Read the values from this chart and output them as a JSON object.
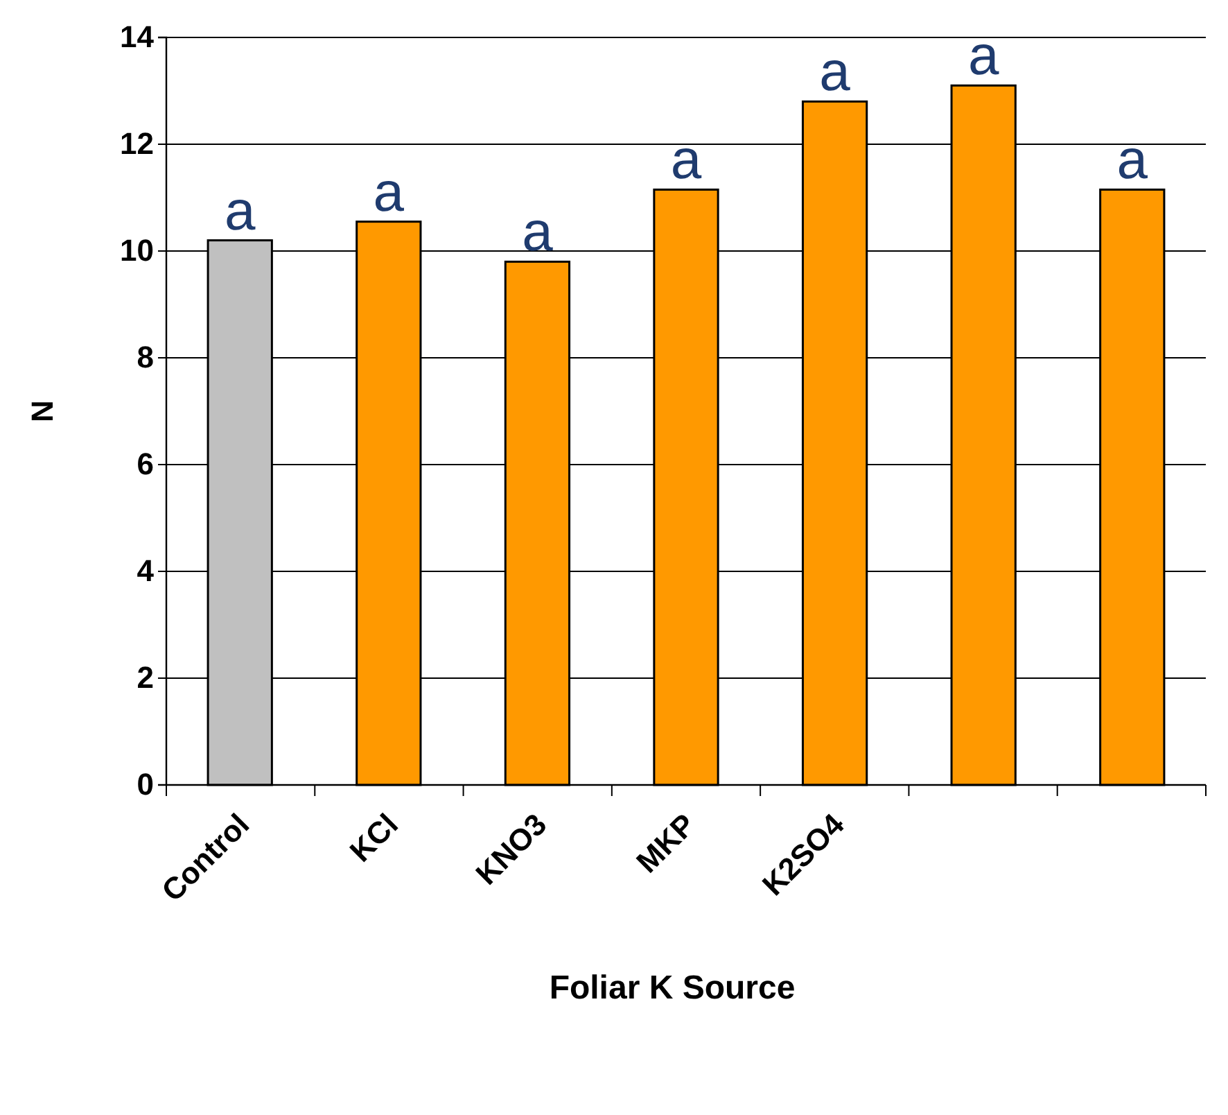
{
  "chart_data": {
    "type": "bar",
    "xlabel": "Foliar K Source",
    "ylabel": "N",
    "categories": [
      "Control",
      "KCl",
      "KNO3",
      "MKP",
      "K2SO4",
      null,
      null
    ],
    "values": [
      10.2,
      10.55,
      9.8,
      11.15,
      12.8,
      13.1,
      11.15
    ],
    "colors": [
      "#c0c0c0",
      "#ff9900",
      "#ff9900",
      "#ff9900",
      "#ff9900",
      "#ff9900",
      "#ff9900"
    ],
    "value_labels": [
      "a",
      "a",
      "a",
      "a",
      "a",
      "a",
      "a"
    ],
    "ylim": [
      0,
      14
    ],
    "yticks": [
      0,
      2,
      4,
      6,
      8,
      10,
      12,
      14
    ],
    "grid": "y"
  }
}
